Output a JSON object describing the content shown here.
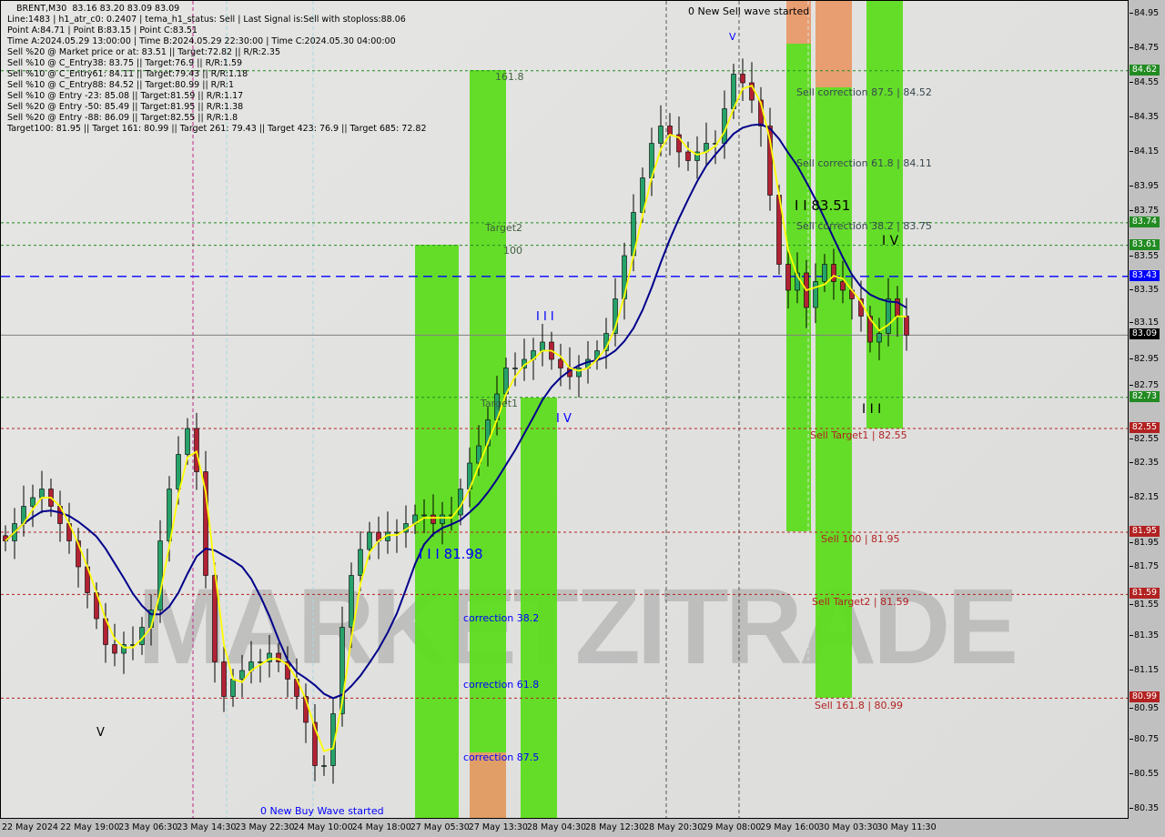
{
  "header": {
    "lines": [
      "BRENT,M30  83.16 83.20 83.09 83.09",
      "Line:1483 | h1_atr_c0: 0.2407 | tema_h1_status: Sell | Last Signal is:Sell with stoploss:88.06",
      "Point A:84.71 | Point B:83.15 | Point C:83.51",
      "Time A:2024.05.29 13:00:00 | Time B:2024.05.29 22:30:00 | Time C:2024.05.30 04:00:00",
      "Sell %20 @ Market price or at: 83.51 || Target:72.82 || R/R:2.35",
      "Sell %10 @ C_Entry38: 83.75 || Target:76.9 || R/R:1.59",
      "Sell %10 @ C_Entry61: 84.11 || Target:79.43 || R/R:1.18",
      "Sell %10 @ C_Entry88: 84.52 || Target:80.99 || R/R:1",
      "Sell %10 @ Entry -23: 85.08 || Target:81.59 || R/R:1.17",
      "Sell %20 @ Entry -50: 85.49 || Target:81.95 || R/R:1.38",
      "Sell %20 @ Entry -88: 86.09 || Target:82.55 || R/R:1.8",
      "Target100: 81.95 || Target 161: 80.99 || Target 261: 79.43 || Target 423: 76.9 || Target 685: 72.82"
    ]
  },
  "watermark": "MARKETZITRADE",
  "labels": {
    "sell_wave": "0 New Sell wave started",
    "buy_wave": "0 New Buy Wave started",
    "v_top": "V",
    "v_left": "V",
    "t161": "161.8",
    "target2": "Target2",
    "t100": "100",
    "target1": "Target1",
    "w3a": "I I I",
    "w4a": "I V",
    "w3b": "I I I 81.98",
    "c38": "correction 38.2",
    "c61": "correction 61.8",
    "c87": "correction 87.5",
    "sc87": "Sell correction 87.5 | 84.52",
    "sc61": "Sell correction 61.8 | 84.11",
    "sc38": "Sell correction 38.2 | 83.75",
    "w2": "I I 83.51",
    "w4b": "I V",
    "w3c": "I I I",
    "st1": "Sell Target1 | 82.55",
    "s100": "Sell 100 | 81.95",
    "st2": "Sell Target2 | 81.59",
    "s161": "Sell 161.8 | 80.99"
  },
  "colors": {
    "bull": "#26a269",
    "bear": "#b22234",
    "ma_slow": "#00008b",
    "ma_fast": "#ffff00",
    "zone_green": "#5ddc1e",
    "zone_orange": "#e89a6a",
    "level_green": "#228b22",
    "level_red": "#b22222",
    "level_blue": "#0000ff"
  },
  "chart_data": {
    "type": "candlestick",
    "symbol": "BRENT",
    "timeframe": "M30",
    "ylim": [
      80.3,
      85.02
    ],
    "y_ticks": [
      84.95,
      84.75,
      84.55,
      84.35,
      84.15,
      83.95,
      83.75,
      83.55,
      83.35,
      83.15,
      82.95,
      82.75,
      82.55,
      82.35,
      82.15,
      81.95,
      81.75,
      81.55,
      81.35,
      81.15,
      80.95,
      80.75,
      80.55,
      80.35
    ],
    "x_ticks": [
      "22 May 2024",
      "22 May 19:00",
      "23 May 06:30",
      "23 May 14:30",
      "23 May 22:30",
      "24 May 10:00",
      "24 May 18:00",
      "27 May 05:30",
      "27 May 13:30",
      "28 May 04:30",
      "28 May 12:30",
      "28 May 20:30",
      "29 May 08:00",
      "29 May 16:00",
      "30 May 03:30",
      "30 May 11:30"
    ],
    "closes": [
      81.9,
      82.0,
      82.1,
      82.15,
      82.2,
      82.1,
      82.0,
      81.9,
      81.75,
      81.6,
      81.45,
      81.3,
      81.25,
      81.3,
      81.3,
      81.4,
      81.5,
      81.9,
      82.2,
      82.4,
      82.55,
      82.3,
      81.7,
      81.2,
      81.0,
      81.1,
      81.15,
      81.2,
      81.2,
      81.25,
      81.2,
      81.1,
      81.0,
      80.85,
      80.6,
      80.6,
      80.9,
      81.4,
      81.7,
      81.85,
      81.95,
      81.9,
      81.95,
      81.95,
      82.0,
      82.05,
      82.05,
      82.0,
      82.05,
      82.05,
      82.2,
      82.35,
      82.45,
      82.6,
      82.75,
      82.9,
      82.9,
      82.95,
      83.0,
      83.05,
      82.95,
      82.9,
      82.85,
      82.9,
      82.95,
      83.0,
      83.1,
      83.3,
      83.55,
      83.8,
      84.0,
      84.2,
      84.3,
      84.25,
      84.15,
      84.1,
      84.15,
      84.2,
      84.2,
      84.4,
      84.6,
      84.55,
      84.45,
      84.3,
      83.9,
      83.5,
      83.35,
      83.45,
      83.25,
      83.4,
      83.5,
      83.4,
      83.35,
      83.3,
      83.2,
      83.05,
      83.1,
      83.3,
      83.2,
      83.09
    ],
    "levels": [
      {
        "price": 84.62,
        "kind": "green",
        "label": "84.62"
      },
      {
        "price": 83.74,
        "kind": "green",
        "label": "83.74"
      },
      {
        "price": 83.61,
        "kind": "green",
        "label": "83.61"
      },
      {
        "price": 83.43,
        "kind": "blue",
        "label": "83.43"
      },
      {
        "price": 83.09,
        "kind": "current",
        "label": "83.09"
      },
      {
        "price": 82.73,
        "kind": "green",
        "label": "82.73"
      },
      {
        "price": 82.55,
        "kind": "red",
        "label": "82.55"
      },
      {
        "price": 81.95,
        "kind": "red",
        "label": "81.95"
      },
      {
        "price": 81.59,
        "kind": "red",
        "label": "81.59"
      },
      {
        "price": 80.99,
        "kind": "red",
        "label": "80.99"
      }
    ]
  }
}
